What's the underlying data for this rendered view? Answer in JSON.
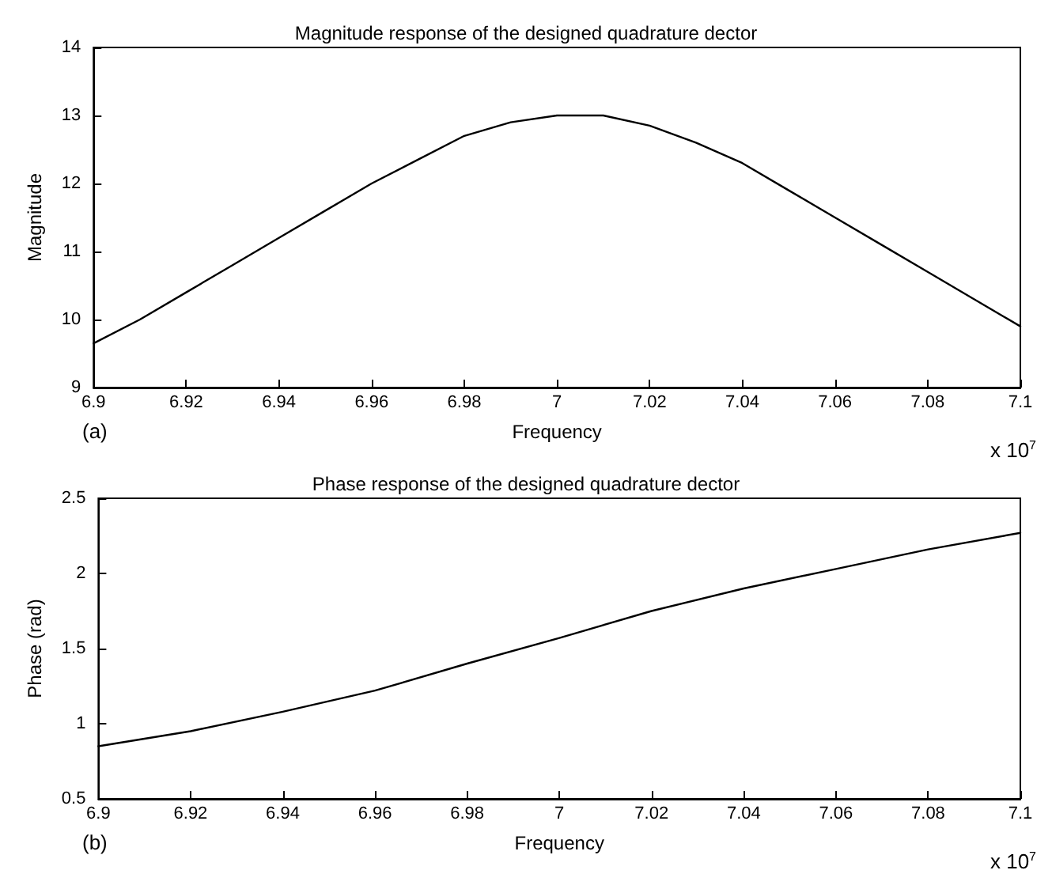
{
  "chart_data": [
    {
      "type": "line",
      "title": "Magnitude response of the designed quadrature dector",
      "xlabel": "Frequency",
      "ylabel": "Magnitude",
      "annotations": [
        "(a)",
        "x 10$^{7}$"
      ],
      "x": [
        6.9,
        6.91,
        6.92,
        6.93,
        6.94,
        6.95,
        6.96,
        6.97,
        6.98,
        6.99,
        7.0,
        7.01,
        7.02,
        7.03,
        7.04,
        7.05,
        7.06,
        7.07,
        7.08,
        7.09,
        7.1
      ],
      "series": [
        {
          "color": "#000000",
          "values": [
            9.65,
            10.0,
            10.4,
            10.8,
            11.2,
            11.6,
            12.0,
            12.35,
            12.7,
            12.9,
            13.0,
            13.0,
            12.85,
            12.6,
            12.3,
            11.9,
            11.5,
            11.1,
            10.7,
            10.3,
            9.9
          ]
        }
      ],
      "xlim": [
        6.9,
        7.1
      ],
      "xticks": [
        6.9,
        6.92,
        6.94,
        6.96,
        6.98,
        7,
        7.02,
        7.04,
        7.06,
        7.08,
        7.1
      ],
      "ylim": [
        9,
        14
      ],
      "yticks": [
        9,
        10,
        11,
        12,
        13,
        14
      ],
      "grid": false,
      "marker": "none",
      "line_style": "solid"
    },
    {
      "type": "line",
      "title": "Phase response of the designed quadrature dector",
      "xlabel": "Frequency",
      "ylabel": "Phase (rad)",
      "annotations": [
        "(b)",
        "x 10$^{7}$"
      ],
      "x": [
        6.9,
        6.92,
        6.94,
        6.96,
        6.98,
        7.0,
        7.02,
        7.04,
        7.06,
        7.08,
        7.1
      ],
      "series": [
        {
          "color": "#000000",
          "values": [
            0.85,
            0.95,
            1.08,
            1.22,
            1.4,
            1.57,
            1.75,
            1.9,
            2.03,
            2.16,
            2.27
          ]
        }
      ],
      "xlim": [
        6.9,
        7.1
      ],
      "xticks": [
        6.9,
        6.92,
        6.94,
        6.96,
        6.98,
        7,
        7.02,
        7.04,
        7.06,
        7.08,
        7.1
      ],
      "ylim": [
        0.5,
        2.5
      ],
      "yticks": [
        0.5,
        1,
        1.5,
        2,
        2.5
      ],
      "grid": false,
      "marker": "none",
      "line_style": "solid"
    }
  ]
}
